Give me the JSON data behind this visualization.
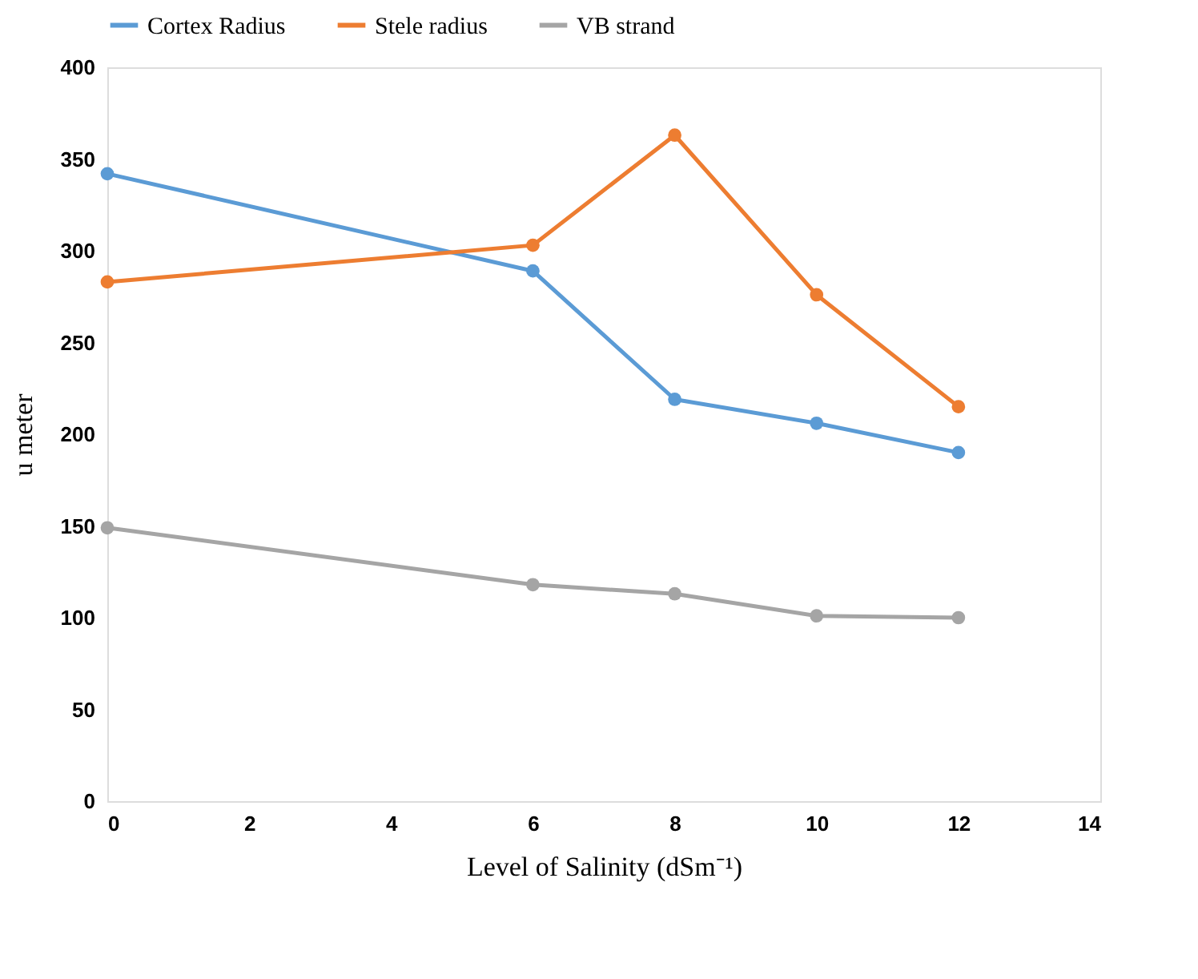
{
  "chart_data": {
    "type": "line",
    "x": [
      0,
      6,
      8,
      10,
      12
    ],
    "series": [
      {
        "name": "Cortex Radius",
        "color": "#5b9bd5",
        "values": [
          342,
          289,
          219,
          206,
          190
        ]
      },
      {
        "name": "Stele radius",
        "color": "#ed7d31",
        "values": [
          283,
          303,
          363,
          276,
          215
        ]
      },
      {
        "name": "VB strand",
        "color": "#a5a5a5",
        "values": [
          149,
          118,
          113,
          101,
          100
        ]
      }
    ],
    "xlabel": "Level of Salinity  (dSm⁻¹)",
    "ylabel": "u meter",
    "xlim": [
      0,
      14
    ],
    "xticks": [
      0,
      2,
      4,
      6,
      8,
      10,
      12,
      14
    ],
    "ylim": [
      0,
      400
    ],
    "yticks": [
      0,
      50,
      100,
      150,
      200,
      250,
      300,
      350,
      400
    ],
    "grid": false,
    "legend": "top",
    "marker": "circle",
    "line_style": "solid"
  }
}
